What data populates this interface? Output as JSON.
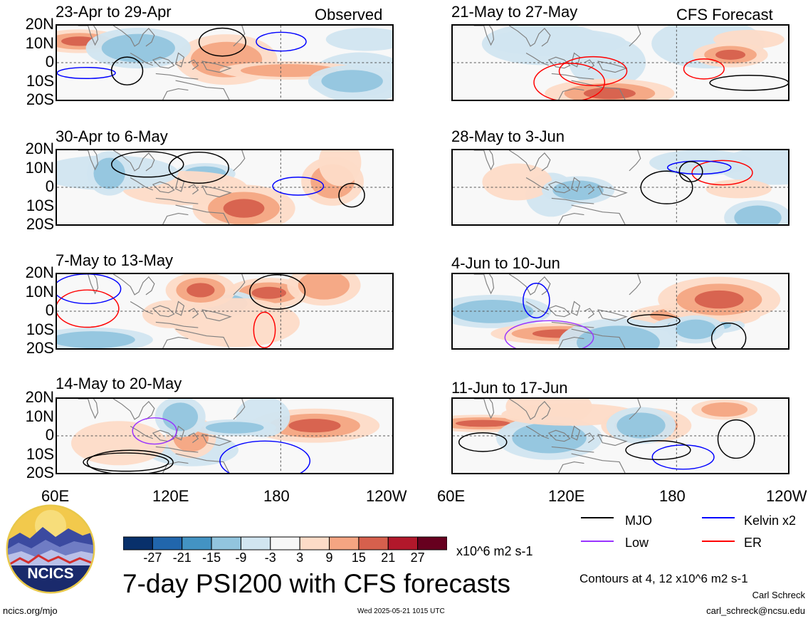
{
  "chart_data": {
    "type": "heatmap",
    "title": "7-day PSI200 with CFS forecasts",
    "units": "x10^6 m2 s-1",
    "x_ticks": [
      "60E",
      "120E",
      "180",
      "120W"
    ],
    "y_ticks": [
      "20N",
      "10N",
      "0",
      "10S",
      "20S"
    ],
    "colorbar": {
      "levels": [
        "-27",
        "-21",
        "-15",
        "-9",
        "-3",
        "3",
        "9",
        "15",
        "21",
        "27"
      ],
      "colors": [
        "#08306b",
        "#2166ac",
        "#4393c3",
        "#92c5de",
        "#d1e5f0",
        "#f7f7f7",
        "#fddbc7",
        "#f4a582",
        "#d6604d",
        "#b2182b",
        "#67001f"
      ]
    },
    "contour_note": "Contours at 4, 12 x10^6 m2 s-1",
    "legend": [
      {
        "name": "MJO",
        "color": "#000000"
      },
      {
        "name": "Kelvin x2",
        "color": "#0000ff"
      },
      {
        "name": "Low",
        "color": "#9933ff"
      },
      {
        "name": "ER",
        "color": "#ff0000"
      }
    ],
    "panels": [
      {
        "period": "23-Apr to 29-Apr",
        "tag": "Observed"
      },
      {
        "period": "21-May to 27-May",
        "tag": "CFS Forecast"
      },
      {
        "period": "30-Apr to 6-May",
        "tag": ""
      },
      {
        "period": "28-May to 3-Jun",
        "tag": ""
      },
      {
        "period": "7-May to 13-May",
        "tag": ""
      },
      {
        "period": "4-Jun to 10-Jun",
        "tag": ""
      },
      {
        "period": "14-May to 20-May",
        "tag": ""
      },
      {
        "period": "11-Jun to 17-Jun",
        "tag": ""
      }
    ]
  },
  "footer": {
    "logo_text": "NCICS",
    "url": "ncics.org/mjo",
    "timestamp": "Wed 2025-05-21 1015 UTC",
    "author": "Carl Schreck",
    "email": "carl_schreck@ncsu.edu"
  }
}
